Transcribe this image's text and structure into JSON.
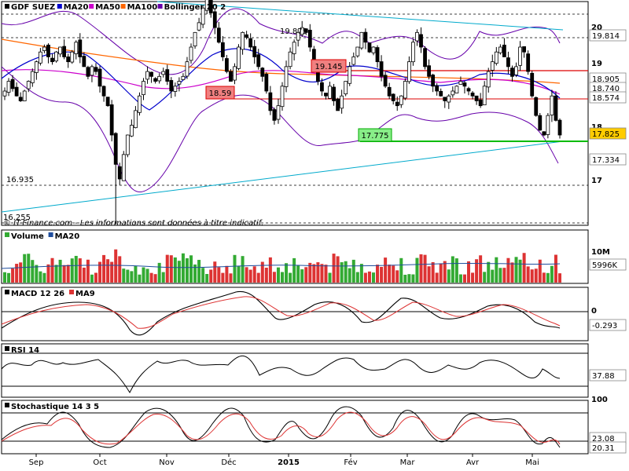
{
  "title": "GDF SUEZ",
  "disclaimer": "© IT-Finance.com - Les informations sont données à titre indicatif.",
  "legend_main": [
    {
      "label": "GDF SUEZ",
      "color": "#000000"
    },
    {
      "label": "MA20",
      "color": "#0000cc"
    },
    {
      "label": "MA50",
      "color": "#cc00cc"
    },
    {
      "label": "MA100",
      "color": "#ff6600"
    },
    {
      "label": "Bollinger 20 2",
      "color": "#6600aa"
    }
  ],
  "legend_volume": [
    {
      "label": "Volume",
      "color": "#33aa33"
    },
    {
      "label": "MA20",
      "color": "#1f4e9e"
    }
  ],
  "legend_macd": [
    {
      "label": "MACD 12 26",
      "color": "#000000"
    },
    {
      "label": "MA9",
      "color": "#dd3333"
    }
  ],
  "legend_rsi": [
    {
      "label": "RSI 14",
      "color": "#000000"
    }
  ],
  "legend_stoch": [
    {
      "label": "Stochastique 14 3 5",
      "color": "#000000"
    }
  ],
  "months": [
    "Sep",
    "Oct",
    "Nov",
    "Déc",
    "2015",
    "Fév",
    "Mar",
    "Avr",
    "Mai"
  ],
  "annotations": {
    "high": "19.875",
    "resist": "19.145",
    "support_mid": "18.59",
    "support_low": "17.775",
    "low1": "16.935",
    "low2": "16.255"
  },
  "price_axis": [
    "20",
    "19",
    "18",
    "17"
  ],
  "price_boxes": {
    "bb_up": "19.814",
    "ma100": "18.905",
    "ma50": "18.740",
    "ma20": "18.574",
    "last": "17.825",
    "bb_low": "17.334"
  },
  "volume_axis": [
    "10M"
  ],
  "volume_box": "5996K",
  "macd_axis": [
    "0"
  ],
  "macd_box": "-0.293",
  "rsi_box": "37.88",
  "stoch_axis": [
    "100"
  ],
  "stoch_box": "23.08",
  "stoch_box2": "20.31",
  "colors": {
    "up": "#33aa33",
    "down": "#dd3333",
    "grid": "#000000",
    "trend": "#00aacc",
    "red_line": "#dd0000",
    "green_line": "#00bb00",
    "last_box": "#ffcc00"
  },
  "chart_data": {
    "type": "candlestick",
    "title": "GDF SUEZ",
    "ylim": [
      16.0,
      20.5
    ],
    "closes": [
      18.7,
      18.9,
      18.75,
      18.6,
      18.5,
      18.7,
      18.9,
      19.1,
      19.3,
      19.5,
      19.6,
      19.4,
      19.3,
      19.5,
      19.6,
      19.4,
      19.3,
      19.5,
      19.7,
      19.4,
      19.2,
      19.0,
      19.2,
      19.1,
      18.8,
      18.6,
      18.4,
      17.8,
      17.2,
      16.9,
      17.4,
      17.8,
      18.0,
      18.3,
      18.6,
      18.9,
      19.1,
      19.0,
      18.9,
      19.0,
      19.1,
      18.9,
      18.7,
      18.8,
      18.9,
      19.0,
      19.3,
      19.6,
      19.9,
      20.1,
      20.4,
      20.6,
      20.3,
      20.0,
      19.7,
      19.4,
      19.1,
      18.9,
      19.2,
      19.6,
      19.9,
      19.8,
      19.6,
      19.4,
      19.2,
      19.0,
      18.7,
      18.3,
      18.1,
      18.4,
      18.8,
      19.2,
      19.5,
      19.7,
      19.9,
      20.0,
      19.9,
      19.6,
      19.2,
      18.9,
      18.7,
      18.6,
      18.8,
      18.5,
      18.3,
      18.6,
      18.9,
      19.2,
      19.4,
      19.6,
      19.9,
      19.7,
      19.5,
      19.6,
      19.3,
      19.0,
      18.8,
      18.6,
      18.5,
      18.4,
      18.6,
      18.9,
      19.3,
      19.7,
      19.9,
      19.6,
      19.2,
      19.0,
      18.8,
      18.7,
      18.6,
      18.5,
      18.6,
      18.7,
      18.8,
      18.9,
      18.8,
      18.7,
      18.6,
      18.5,
      18.4,
      18.8,
      19.1,
      19.3,
      19.5,
      19.6,
      19.4,
      19.2,
      19.0,
      19.2,
      19.6,
      19.5,
      19.1,
      18.6,
      18.2,
      17.9,
      17.8,
      18.2,
      18.6,
      18.1,
      17.8
    ],
    "volume_ma20_level": 5996000,
    "macd_last": -0.293,
    "rsi_last": 37.88,
    "stoch_last": 23.08
  }
}
